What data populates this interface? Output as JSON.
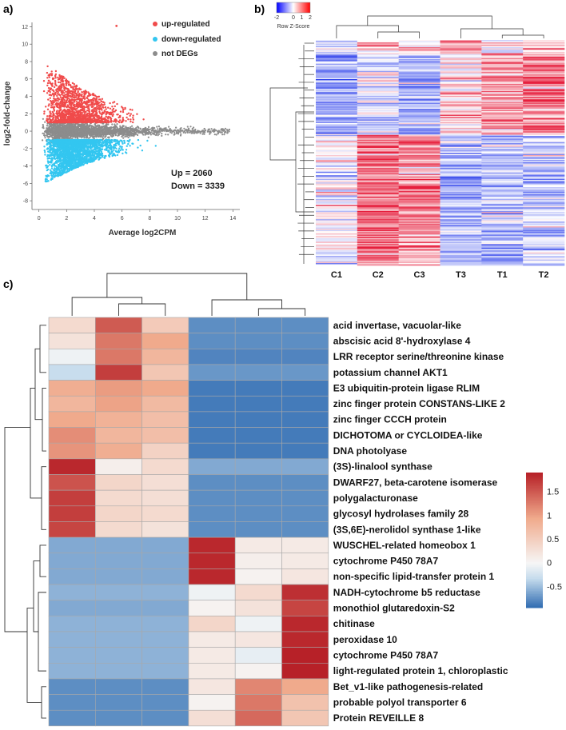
{
  "panels": {
    "a": "a)",
    "b": "b)",
    "c": "c)"
  },
  "chart_data": [
    {
      "type": "scatter",
      "title": "",
      "xlabel": "Average log2CPM",
      "ylabel": "log2-fold-change",
      "xlim": [
        -0.5,
        14.5
      ],
      "ylim": [
        -9,
        12.5
      ],
      "xticks": [
        "0",
        "2",
        "4",
        "6",
        "8",
        "10",
        "12",
        "14"
      ],
      "yticks": [
        "12",
        "10",
        "8",
        "6",
        "4",
        "2",
        "0",
        "-2",
        "-4",
        "-6",
        "-8"
      ],
      "legend": [
        {
          "name": "up-regulated",
          "color": "#f04b4b"
        },
        {
          "name": "down-regulated",
          "color": "#33c6f0"
        },
        {
          "name": "not DEGs",
          "color": "#8c8c8c"
        }
      ],
      "annotations": [
        "Up = 2060",
        "Down = 3339"
      ],
      "summary": {
        "up": 2060,
        "down": 3339
      }
    },
    {
      "type": "heatmap",
      "title": "",
      "colorbar_title": "Row Z-Score",
      "colorbar_ticks": [
        "-2",
        "0",
        "1",
        "2"
      ],
      "columns": [
        "C1",
        "C2",
        "C3",
        "T3",
        "T1",
        "T2"
      ]
    },
    {
      "type": "heatmap",
      "rows": [
        {
          "gene": "acid invertase, vacuolar-like",
          "values": [
            0.35,
            1.5,
            0.55,
            -0.75,
            -0.75,
            -0.75
          ]
        },
        {
          "gene": "abscisic acid 8'-hydroxylase 4",
          "values": [
            0.25,
            1.3,
            0.95,
            -0.75,
            -0.75,
            -0.75
          ]
        },
        {
          "gene": "LRR receptor serine/threonine kinase",
          "values": [
            -0.05,
            1.3,
            0.8,
            -0.8,
            -0.8,
            -0.8
          ]
        },
        {
          "gene": "potassium channel AKT1",
          "values": [
            -0.3,
            1.7,
            0.6,
            -0.7,
            -0.7,
            -0.7
          ]
        },
        {
          "gene": "E3 ubiquitin-protein ligase RLIM",
          "values": [
            0.9,
            1.05,
            0.95,
            -0.85,
            -0.85,
            -0.85
          ]
        },
        {
          "gene": "zinc finger protein CONSTANS-LIKE 2",
          "values": [
            0.8,
            1.0,
            0.75,
            -0.85,
            -0.85,
            -0.85
          ]
        },
        {
          "gene": "zinc finger CCCH protein",
          "values": [
            0.95,
            0.85,
            0.7,
            -0.85,
            -0.85,
            -0.85
          ]
        },
        {
          "gene": "DICHOTOMA or CYCLOIDEA-like",
          "values": [
            1.15,
            0.8,
            0.7,
            -0.85,
            -0.85,
            -0.85
          ]
        },
        {
          "gene": "DNA photolyase",
          "values": [
            1.1,
            0.9,
            0.45,
            -0.85,
            -0.85,
            -0.85
          ]
        },
        {
          "gene": "(3S)-linalool synthase",
          "values": [
            1.85,
            0.1,
            0.35,
            -0.6,
            -0.6,
            -0.6
          ]
        },
        {
          "gene": "DWARF27, beta-carotene isomerase",
          "values": [
            1.55,
            0.4,
            0.3,
            -0.75,
            -0.75,
            -0.75
          ]
        },
        {
          "gene": "polygalacturonase",
          "values": [
            1.7,
            0.35,
            0.3,
            -0.75,
            -0.75,
            -0.75
          ]
        },
        {
          "gene": "glycosyl hydrolases family 28",
          "values": [
            1.7,
            0.4,
            0.35,
            -0.75,
            -0.75,
            -0.75
          ]
        },
        {
          "gene": "(3S,6E)-nerolidol synthase 1-like",
          "values": [
            1.65,
            0.35,
            0.25,
            -0.75,
            -0.75,
            -0.75
          ]
        },
        {
          "gene": "WUSCHEL-related homeobox 1",
          "values": [
            -0.6,
            -0.6,
            -0.6,
            1.85,
            0.15,
            0.15
          ]
        },
        {
          "gene": "cytochrome P450 78A7",
          "values": [
            -0.6,
            -0.6,
            -0.6,
            1.85,
            0.1,
            0.15
          ]
        },
        {
          "gene": "non-specific lipid-transfer protein 1",
          "values": [
            -0.6,
            -0.6,
            -0.6,
            1.85,
            0.05,
            0.2
          ]
        },
        {
          "gene": "NADH-cytochrome b5 reductase",
          "values": [
            -0.55,
            -0.55,
            -0.55,
            -0.05,
            0.35,
            1.8
          ]
        },
        {
          "gene": "monothiol glutaredoxin-S2",
          "values": [
            -0.6,
            -0.6,
            -0.6,
            0.05,
            0.25,
            1.65
          ]
        },
        {
          "gene": "chitinase",
          "values": [
            -0.55,
            -0.55,
            -0.55,
            0.4,
            -0.05,
            1.85
          ]
        },
        {
          "gene": "peroxidase 10",
          "values": [
            -0.55,
            -0.55,
            -0.55,
            0.15,
            0.2,
            1.85
          ]
        },
        {
          "gene": "cytochrome P450 78A7",
          "values": [
            -0.55,
            -0.55,
            -0.55,
            0.15,
            -0.1,
            1.9
          ]
        },
        {
          "gene": "light-regulated protein 1, chloroplastic",
          "values": [
            -0.55,
            -0.55,
            -0.55,
            0.15,
            0.05,
            1.9
          ]
        },
        {
          "gene": "Bet_v1-like pathogenesis-related",
          "values": [
            -0.75,
            -0.75,
            -0.75,
            0.2,
            1.2,
            0.95
          ]
        },
        {
          "gene": "probable polyol transporter 6",
          "values": [
            -0.75,
            -0.75,
            -0.75,
            0.05,
            1.3,
            0.65
          ]
        },
        {
          "gene": "Protein REVEILLE 8",
          "values": [
            -0.75,
            -0.75,
            -0.75,
            0.3,
            1.4,
            0.6
          ]
        }
      ],
      "colorbar_ticks": [
        "1.5",
        "1",
        "0.5",
        "0",
        "-0.5"
      ],
      "colorbar_range": [
        -0.95,
        1.9
      ]
    }
  ]
}
